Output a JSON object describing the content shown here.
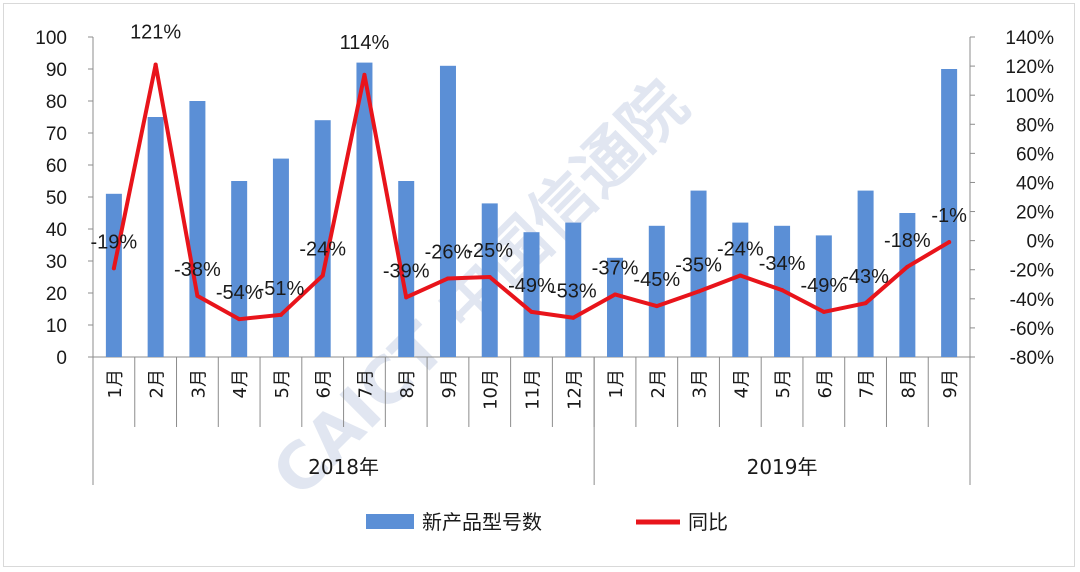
{
  "chart_data": {
    "type": "bar",
    "categories": [
      "1月",
      "2月",
      "3月",
      "4月",
      "5月",
      "6月",
      "7月",
      "8月",
      "9月",
      "10月",
      "11月",
      "12月",
      "1月",
      "2月",
      "3月",
      "4月",
      "5月",
      "6月",
      "7月",
      "8月",
      "9月"
    ],
    "groups": [
      {
        "label": "2018年",
        "count": 12
      },
      {
        "label": "2019年",
        "count": 9
      }
    ],
    "series": [
      {
        "name": "新产品型号数",
        "type": "bar",
        "axis": "left",
        "color": "#5b8fd6",
        "values": [
          51,
          75,
          80,
          55,
          62,
          74,
          92,
          55,
          91,
          48,
          39,
          42,
          31,
          41,
          52,
          42,
          41,
          38,
          52,
          45,
          90
        ]
      },
      {
        "name": "同比",
        "type": "line",
        "axis": "right",
        "color": "#e8141b",
        "values": [
          -19,
          121,
          -38,
          -54,
          -51,
          -24,
          114,
          -39,
          -26,
          -25,
          -49,
          -53,
          -37,
          -45,
          -35,
          -24,
          -34,
          -49,
          -43,
          -18,
          -1
        ],
        "labels": [
          "-19%",
          "121%",
          "-38%",
          "-54%",
          "-51%",
          "-24%",
          "114%",
          "-39%",
          "-26%",
          "-25%",
          "-49%",
          "-53%",
          "-37%",
          "-45%",
          "-35%",
          "-24%",
          "-34%",
          "-49%",
          "-43%",
          "-18%",
          "-1%"
        ]
      }
    ],
    "ylim": [
      0,
      100
    ],
    "yticks": [
      "0",
      "10",
      "20",
      "30",
      "40",
      "50",
      "60",
      "70",
      "80",
      "90",
      "100"
    ],
    "y2lim": [
      -80,
      140
    ],
    "y2ticks": [
      "-80%",
      "-60%",
      "-40%",
      "-20%",
      "0%",
      "20%",
      "40%",
      "60%",
      "80%",
      "100%",
      "120%",
      "140%"
    ],
    "legend_position": "bottom",
    "grid": false
  },
  "watermark": "CAICT 中国信通院"
}
